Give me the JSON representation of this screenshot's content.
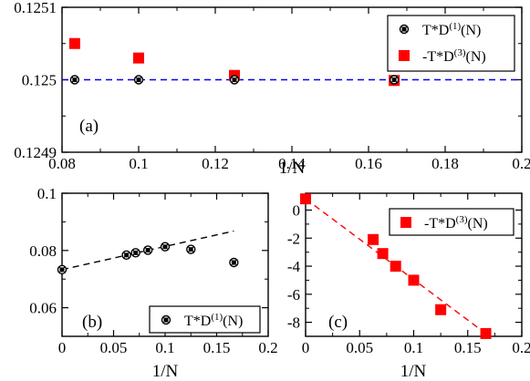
{
  "chart_data": [
    {
      "id": "a",
      "type": "scatter",
      "panel_label": "(a)",
      "xlabel": "1/N",
      "ylabel": "",
      "xlim": [
        0.08,
        0.2
      ],
      "ylim": [
        0.1249,
        0.1251
      ],
      "x_ticks": [
        0.08,
        0.1,
        0.12,
        0.14,
        0.16,
        0.18,
        0.2
      ],
      "x_tick_labels": [
        "0.08",
        "0.1",
        "0.12",
        "0.14",
        "0.16",
        "0.18",
        "0.2"
      ],
      "y_ticks": [
        0.1249,
        0.125,
        0.1251
      ],
      "y_tick_labels": [
        "0.1249",
        "0.125",
        "0.1251"
      ],
      "legend_position": "top-right",
      "reference_line": {
        "y": 0.125,
        "color": "#0000ff",
        "style": "dashed"
      },
      "series": [
        {
          "name": "T*D(1)(N)",
          "legend_main": "T*D",
          "legend_sup": "(1)",
          "legend_tail": "(N)",
          "marker": "circle-cross",
          "color": "#000000",
          "x": [
            0.0833,
            0.1,
            0.125,
            0.1667
          ],
          "y": [
            0.125,
            0.125,
            0.125,
            0.125
          ]
        },
        {
          "name": "-T*D(3)(N)",
          "legend_main": "-T*D",
          "legend_sup": "(3)",
          "legend_tail": "(N)",
          "marker": "square",
          "color": "#ff0000",
          "x": [
            0.0833,
            0.1,
            0.125,
            0.1667
          ],
          "y": [
            0.12505,
            0.12503,
            0.125006,
            0.124999
          ]
        }
      ]
    },
    {
      "id": "b",
      "type": "scatter",
      "panel_label": "(b)",
      "xlabel": "1/N",
      "ylabel": "",
      "xlim": [
        0,
        0.2
      ],
      "ylim": [
        0.05,
        0.1
      ],
      "x_ticks": [
        0,
        0.05,
        0.1,
        0.15,
        0.2
      ],
      "x_tick_labels": [
        "0",
        "0.05",
        "0.1",
        "0.15",
        "0.2"
      ],
      "y_ticks": [
        0.06,
        0.08,
        0.1
      ],
      "y_tick_labels": [
        "0.06",
        "0.08",
        "0.1"
      ],
      "legend_position": "bottom-right",
      "fit_line": {
        "x": [
          0,
          0.1667
        ],
        "y": [
          0.0733,
          0.0868
        ],
        "color": "#000000",
        "style": "dashed"
      },
      "series": [
        {
          "name": "T*D(1)(N)",
          "legend_main": "T*D",
          "legend_sup": "(1)",
          "legend_tail": "(N)",
          "marker": "circle-cross",
          "color": "#000000",
          "x": [
            0,
            0.0625,
            0.0714,
            0.0833,
            0.1,
            0.125,
            0.1667
          ],
          "y": [
            0.0733,
            0.0784,
            0.0792,
            0.0801,
            0.0813,
            0.0804,
            0.0758
          ]
        }
      ]
    },
    {
      "id": "c",
      "type": "scatter",
      "panel_label": "(c)",
      "xlabel": "1/N",
      "ylabel": "",
      "xlim": [
        0,
        0.2
      ],
      "ylim": [
        -9,
        1.2
      ],
      "x_ticks": [
        0,
        0.05,
        0.1,
        0.15,
        0.2
      ],
      "x_tick_labels": [
        "0",
        "0.05",
        "0.1",
        "0.15",
        "0.2"
      ],
      "y_ticks": [
        -8,
        -6,
        -4,
        -2,
        0
      ],
      "y_tick_labels": [
        "-8",
        "-6",
        "-4",
        "-2",
        "0"
      ],
      "legend_position": "top-right",
      "fit_line": {
        "x": [
          0,
          0.1667
        ],
        "y": [
          0.8,
          -8.8
        ],
        "color": "#ff0000",
        "style": "dashed"
      },
      "series": [
        {
          "name": "-T*D(3)(N)",
          "legend_main": "-T*D",
          "legend_sup": "(3)",
          "legend_tail": "(N)",
          "marker": "square",
          "color": "#ff0000",
          "x": [
            0,
            0.0625,
            0.0714,
            0.0833,
            0.1,
            0.125,
            0.1667
          ],
          "y": [
            0.8,
            -2.1,
            -3.1,
            -4.0,
            -5.0,
            -7.1,
            -8.8
          ]
        }
      ]
    }
  ]
}
